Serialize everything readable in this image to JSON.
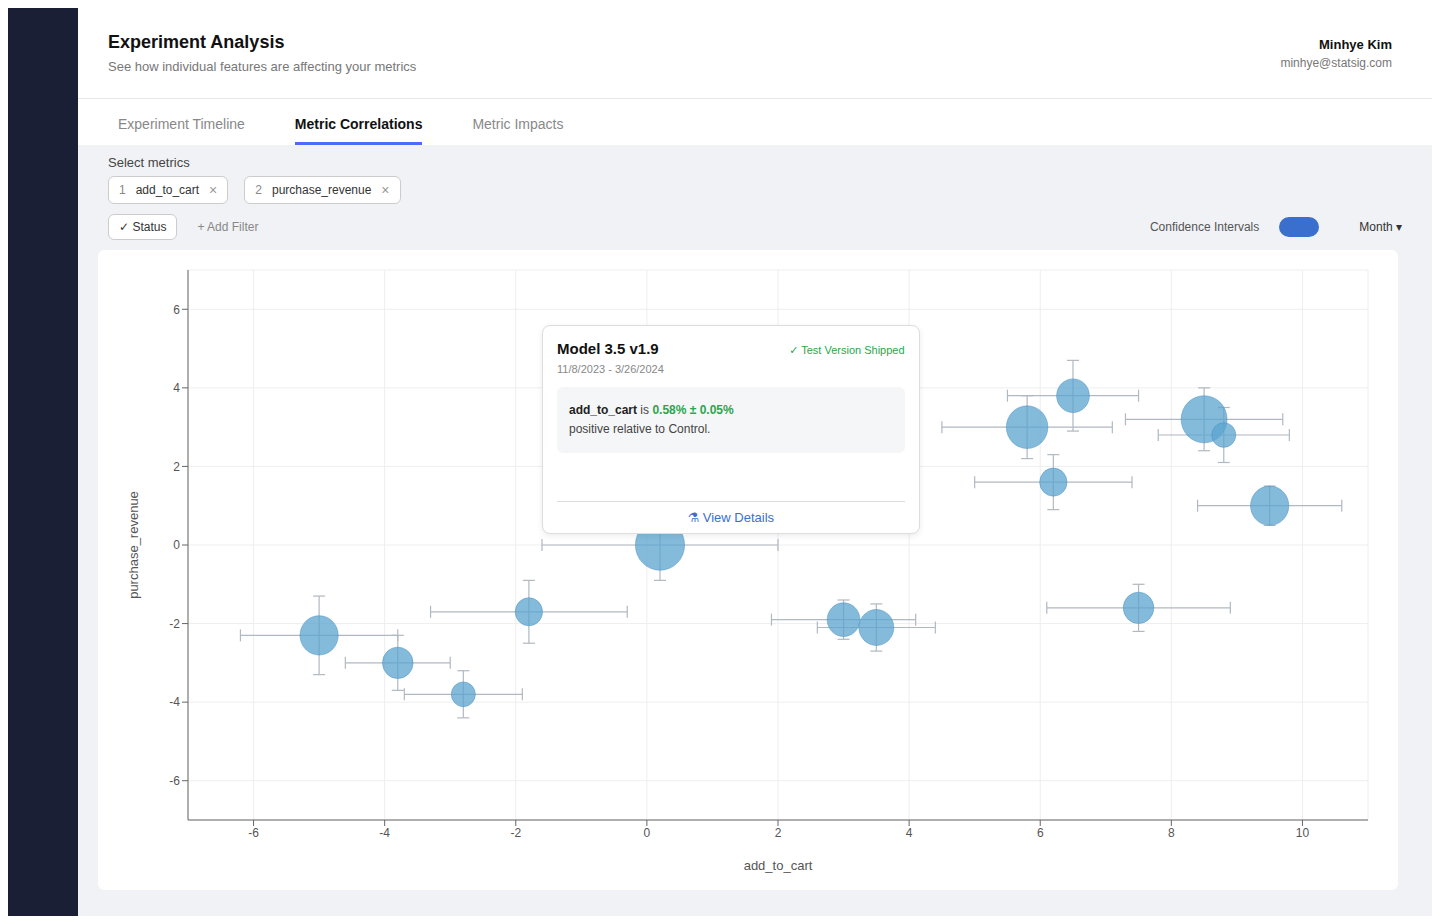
{
  "chart_data": {
    "type": "scatter",
    "title": "Experiment Analysis",
    "subtitle": "See how individual features are affecting your metrics",
    "x_label": "add_to_cart",
    "y_label": "purchase_revenue",
    "x": [
      -5.0,
      -3.8,
      -2.8,
      -1.8,
      0.2,
      3.0,
      3.5,
      5.8,
      6.2,
      6.5,
      7.5,
      8.5,
      8.8,
      9.5
    ],
    "values": [
      -2.3,
      -3.0,
      -3.8,
      -1.7,
      0.0,
      -1.9,
      -2.1,
      3.0,
      1.6,
      3.8,
      -1.6,
      3.2,
      2.8,
      1.0
    ],
    "xerr": [
      1.2,
      0.8,
      0.9,
      1.5,
      1.8,
      1.1,
      0.9,
      1.3,
      1.2,
      1.0,
      1.4,
      1.2,
      1.0,
      1.1
    ],
    "yerr": [
      1.0,
      0.7,
      0.6,
      0.8,
      0.9,
      0.5,
      0.6,
      0.8,
      0.7,
      0.9,
      0.6,
      0.8,
      0.7,
      0.5
    ],
    "sizes": [
      35,
      28,
      22,
      25,
      45,
      30,
      32,
      38,
      25,
      30,
      28,
      42,
      22,
      35
    ],
    "color": "#5ba4cf",
    "xlim": [
      -7,
      11
    ],
    "ylim": [
      -7,
      7
    ],
    "xticks": [
      -6,
      -4,
      -2,
      0,
      2,
      4,
      6,
      8,
      10
    ],
    "yticks": [
      -6,
      -4,
      -2,
      0,
      2,
      4,
      6
    ],
    "grid": true,
    "annotations": [
      "Minhye Kim",
      "minhye@statsig.com",
      "Experiment Timeline",
      "Metric Correlations",
      "Metric Impacts",
      "Select metrics",
      "1",
      "add_to_cart",
      "×",
      "2",
      "purchase_revenue",
      "×",
      "✓ Status",
      "+ Add Filter",
      "Confidence Intervals",
      "Month ▾",
      "Model 3.5 v1.9",
      "✓ Test Version Shipped",
      "11/8/2023 - 3/26/2024",
      "add_to_cart",
      " is ",
      "0.58% ± 0.05%",
      "positive relative to Control.",
      "⚗ View Details"
    ]
  }
}
